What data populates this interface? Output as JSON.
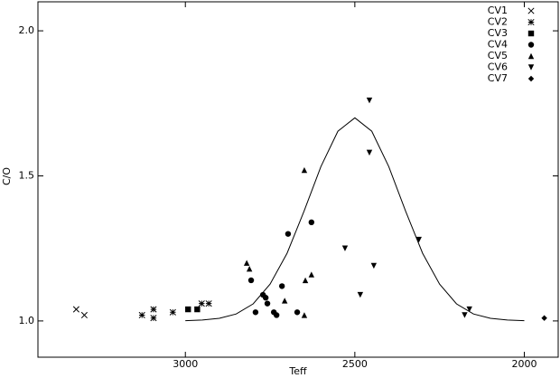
{
  "chart_data": {
    "type": "scatter",
    "xlabel": "Teff",
    "ylabel": "C/O",
    "xlim": [
      3435,
      1900
    ],
    "ylim": [
      0.875,
      2.1
    ],
    "xticks": [
      3000,
      2500,
      2000
    ],
    "yticks": [
      {
        "value": 1.0,
        "label": "1.0"
      },
      {
        "value": 1.5,
        "label": "1.5"
      },
      {
        "value": 2.0,
        "label": "2.0"
      }
    ],
    "legend": "upper right",
    "series": [
      {
        "name": "CV1",
        "color": "#000000",
        "marker": "x",
        "x": [
          3322,
          3298
        ],
        "y": [
          1.04,
          1.02
        ]
      },
      {
        "name": "CV2",
        "color": "#000000",
        "marker": "star",
        "x": [
          3128,
          3094,
          3094,
          3037,
          2952,
          2931
        ],
        "y": [
          1.02,
          1.01,
          1.04,
          1.03,
          1.06,
          1.06
        ]
      },
      {
        "name": "CV3",
        "color": "#000000",
        "marker": "square",
        "x": [
          2992,
          2965
        ],
        "y": [
          1.04,
          1.04
        ]
      },
      {
        "name": "CV4",
        "color": "#000000",
        "marker": "circle",
        "x": [
          2806,
          2793,
          2771,
          2763,
          2758,
          2739,
          2731,
          2715,
          2697,
          2670,
          2628
        ],
        "y": [
          1.14,
          1.03,
          1.09,
          1.08,
          1.06,
          1.03,
          1.02,
          1.12,
          1.3,
          1.03,
          1.34
        ]
      },
      {
        "name": "CV5",
        "color": "#000000",
        "marker": "triangle-up",
        "x": [
          2819,
          2811,
          2707,
          2649,
          2646,
          2628,
          2649
        ],
        "y": [
          1.2,
          1.18,
          1.07,
          1.52,
          1.14,
          1.16,
          1.02
        ]
      },
      {
        "name": "CV6",
        "color": "#000000",
        "marker": "triangle-down",
        "x": [
          2457,
          2457,
          2529,
          2444,
          2484,
          2311,
          2176,
          2162
        ],
        "y": [
          1.76,
          1.58,
          1.25,
          1.19,
          1.09,
          1.28,
          1.02,
          1.04
        ]
      },
      {
        "name": "CV7",
        "color": "#000000",
        "marker": "diamond",
        "x": [
          1941
        ],
        "y": [
          1.01
        ]
      }
    ],
    "curve": {
      "color": "#000000",
      "x": [
        3000,
        2950,
        2900,
        2850,
        2800,
        2750,
        2700,
        2650,
        2600,
        2550,
        2500,
        2450,
        2400,
        2350,
        2300,
        2250,
        2200,
        2150,
        2100,
        2050,
        2000
      ],
      "y": [
        1.001,
        1.003,
        1.009,
        1.024,
        1.059,
        1.127,
        1.233,
        1.378,
        1.532,
        1.654,
        1.7,
        1.654,
        1.532,
        1.378,
        1.233,
        1.127,
        1.059,
        1.024,
        1.009,
        1.003,
        1.001
      ]
    }
  }
}
